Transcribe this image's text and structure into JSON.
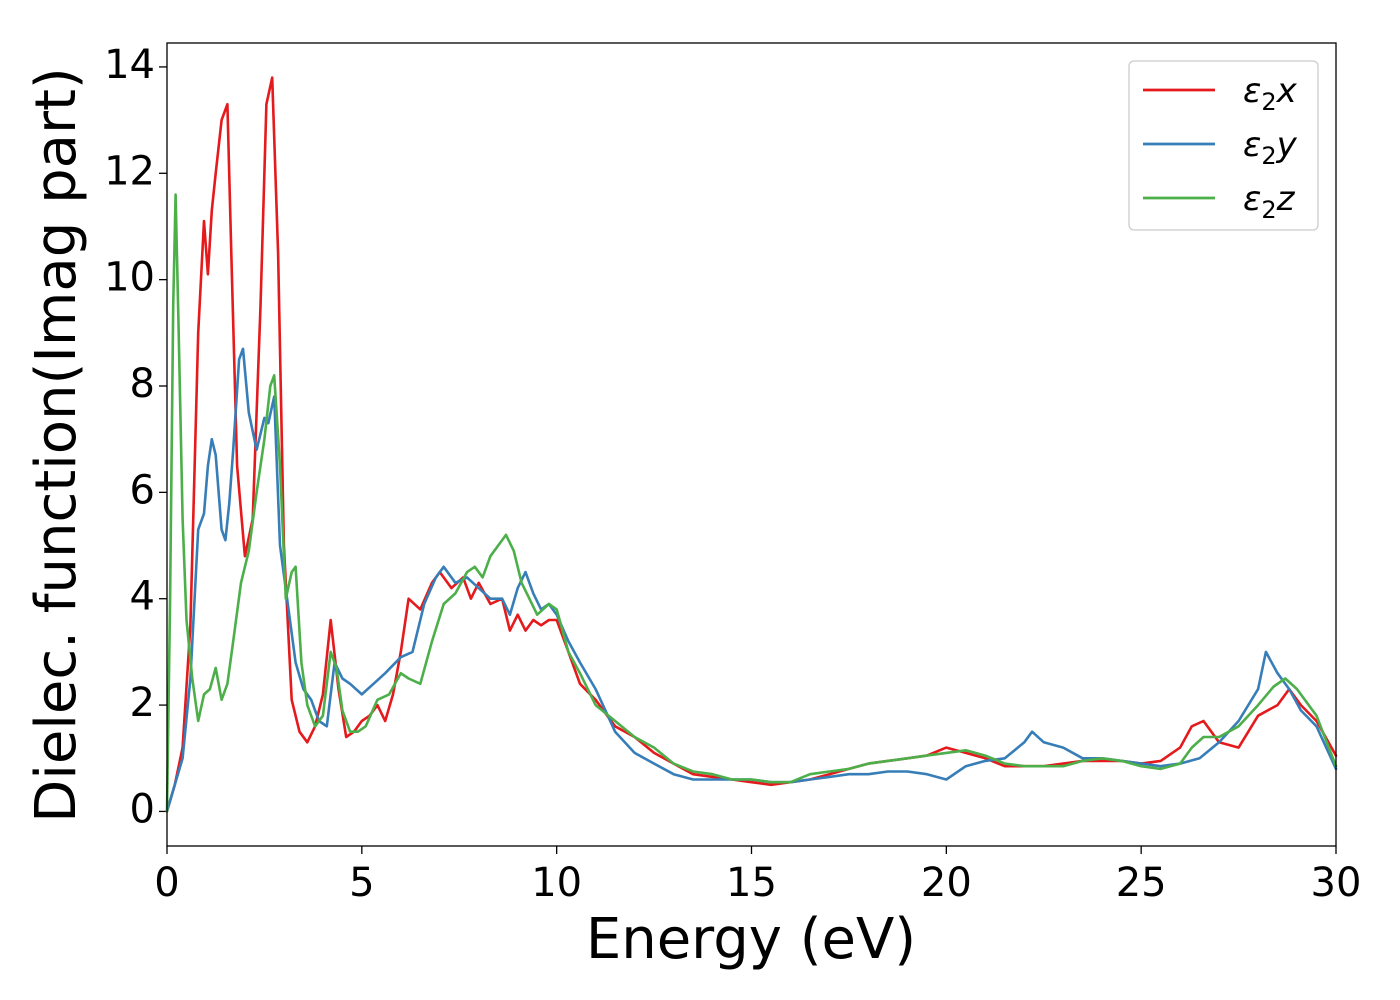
{
  "chart_data": {
    "type": "line",
    "title": "",
    "xlabel": "Energy (eV)",
    "ylabel": "Dielec. function(Imag part)",
    "xlim": [
      0,
      30
    ],
    "ylim": [
      -0.65,
      14.45
    ],
    "xticks": [
      0,
      5,
      10,
      15,
      20,
      25,
      30
    ],
    "yticks": [
      0,
      2,
      4,
      6,
      8,
      10,
      12,
      14
    ],
    "grid": false,
    "legend_position": "top-right",
    "series": [
      {
        "name": "ε2x",
        "legend_base": "ε",
        "legend_sub": "2",
        "legend_suffix": "x",
        "color": "#e41a1c",
        "x": [
          0,
          0.2,
          0.4,
          0.6,
          0.8,
          0.95,
          1.05,
          1.15,
          1.25,
          1.4,
          1.55,
          1.65,
          1.8,
          2.0,
          2.2,
          2.4,
          2.55,
          2.7,
          2.85,
          3.0,
          3.2,
          3.4,
          3.6,
          3.8,
          4.0,
          4.2,
          4.4,
          4.6,
          4.8,
          5.0,
          5.2,
          5.4,
          5.6,
          5.8,
          6.0,
          6.2,
          6.5,
          6.8,
          7.0,
          7.3,
          7.6,
          7.8,
          8.0,
          8.3,
          8.6,
          8.8,
          9.0,
          9.2,
          9.4,
          9.6,
          9.8,
          10.0,
          10.3,
          10.6,
          11.0,
          11.5,
          12.0,
          12.5,
          13.0,
          13.5,
          14.0,
          14.5,
          15.0,
          15.5,
          16.0,
          16.5,
          17.0,
          17.5,
          18.0,
          18.5,
          19.0,
          19.5,
          20.0,
          20.5,
          21.0,
          21.5,
          22.0,
          22.5,
          23.0,
          23.5,
          24.0,
          24.5,
          25.0,
          25.5,
          26.0,
          26.3,
          26.6,
          27.0,
          27.5,
          28.0,
          28.5,
          28.8,
          29.1,
          29.5,
          30.0
        ],
        "y": [
          0,
          0.5,
          1.2,
          3.5,
          9.0,
          11.1,
          10.1,
          11.3,
          12.0,
          13.0,
          13.3,
          10.5,
          6.5,
          4.8,
          5.5,
          9.5,
          13.3,
          13.8,
          10.5,
          5.0,
          2.1,
          1.5,
          1.3,
          1.6,
          2.2,
          3.6,
          2.3,
          1.4,
          1.5,
          1.7,
          1.8,
          2.0,
          1.7,
          2.2,
          3.0,
          4.0,
          3.8,
          4.3,
          4.5,
          4.2,
          4.4,
          4.0,
          4.3,
          3.9,
          4.0,
          3.4,
          3.7,
          3.4,
          3.6,
          3.5,
          3.6,
          3.6,
          3.0,
          2.4,
          2.1,
          1.6,
          1.4,
          1.1,
          0.9,
          0.7,
          0.65,
          0.6,
          0.55,
          0.5,
          0.55,
          0.6,
          0.7,
          0.8,
          0.9,
          0.95,
          1.0,
          1.05,
          1.2,
          1.1,
          1.0,
          0.85,
          0.85,
          0.85,
          0.9,
          0.95,
          0.95,
          0.95,
          0.9,
          0.95,
          1.2,
          1.6,
          1.7,
          1.3,
          1.2,
          1.8,
          2.0,
          2.3,
          2.0,
          1.7,
          1.05
        ]
      },
      {
        "name": "ε2y",
        "legend_base": "ε",
        "legend_sub": "2",
        "legend_suffix": "y",
        "color": "#377eb8",
        "x": [
          0,
          0.2,
          0.4,
          0.6,
          0.8,
          0.95,
          1.05,
          1.15,
          1.25,
          1.4,
          1.5,
          1.6,
          1.7,
          1.85,
          1.95,
          2.1,
          2.3,
          2.5,
          2.6,
          2.75,
          2.9,
          3.1,
          3.3,
          3.5,
          3.7,
          3.9,
          4.1,
          4.3,
          4.5,
          4.7,
          5.0,
          5.3,
          5.6,
          6.0,
          6.3,
          6.6,
          6.9,
          7.1,
          7.4,
          7.7,
          8.0,
          8.3,
          8.6,
          8.8,
          9.0,
          9.2,
          9.4,
          9.6,
          9.8,
          10.0,
          10.3,
          10.6,
          11.0,
          11.5,
          12.0,
          12.5,
          13.0,
          13.5,
          14.0,
          14.5,
          15.0,
          15.5,
          16.0,
          16.5,
          17.0,
          17.5,
          18.0,
          18.5,
          19.0,
          19.5,
          20.0,
          20.5,
          21.0,
          21.5,
          22.0,
          22.2,
          22.5,
          23.0,
          23.5,
          24.0,
          24.5,
          25.0,
          25.5,
          26.0,
          26.5,
          27.0,
          27.5,
          28.0,
          28.2,
          28.5,
          28.8,
          29.1,
          29.5,
          30.0
        ],
        "y": [
          0,
          0.5,
          1.0,
          2.5,
          5.3,
          5.6,
          6.5,
          7.0,
          6.7,
          5.3,
          5.1,
          5.8,
          6.8,
          8.5,
          8.7,
          7.5,
          6.8,
          7.4,
          7.3,
          7.8,
          5.0,
          3.9,
          2.8,
          2.3,
          2.1,
          1.7,
          1.6,
          2.8,
          2.5,
          2.4,
          2.2,
          2.4,
          2.6,
          2.9,
          3.0,
          3.9,
          4.4,
          4.6,
          4.3,
          4.4,
          4.2,
          4.0,
          4.0,
          3.7,
          4.2,
          4.5,
          4.1,
          3.8,
          3.9,
          3.7,
          3.2,
          2.8,
          2.3,
          1.5,
          1.1,
          0.9,
          0.7,
          0.6,
          0.6,
          0.6,
          0.6,
          0.55,
          0.55,
          0.6,
          0.65,
          0.7,
          0.7,
          0.75,
          0.75,
          0.7,
          0.6,
          0.85,
          0.95,
          1.0,
          1.3,
          1.5,
          1.3,
          1.2,
          1.0,
          1.0,
          0.95,
          0.9,
          0.85,
          0.9,
          1.0,
          1.3,
          1.7,
          2.3,
          3.0,
          2.6,
          2.3,
          1.9,
          1.6,
          0.8
        ]
      },
      {
        "name": "ε2z",
        "legend_base": "ε",
        "legend_sub": "2",
        "legend_suffix": "z",
        "color": "#4daf4a",
        "x": [
          0,
          0.08,
          0.16,
          0.22,
          0.3,
          0.4,
          0.5,
          0.65,
          0.8,
          0.95,
          1.1,
          1.25,
          1.4,
          1.55,
          1.7,
          1.9,
          2.1,
          2.3,
          2.5,
          2.65,
          2.75,
          2.9,
          3.05,
          3.2,
          3.3,
          3.45,
          3.6,
          3.8,
          4.0,
          4.2,
          4.35,
          4.5,
          4.7,
          4.9,
          5.1,
          5.4,
          5.7,
          6.0,
          6.2,
          6.5,
          6.8,
          7.1,
          7.4,
          7.7,
          7.9,
          8.1,
          8.3,
          8.5,
          8.7,
          8.9,
          9.1,
          9.3,
          9.5,
          9.8,
          10.0,
          10.3,
          10.6,
          11.0,
          11.5,
          12.0,
          12.5,
          13.0,
          13.5,
          14.0,
          14.5,
          15.0,
          15.5,
          16.0,
          16.5,
          17.0,
          17.5,
          18.0,
          18.5,
          19.0,
          19.5,
          20.0,
          20.5,
          21.0,
          21.5,
          22.0,
          22.5,
          23.0,
          23.5,
          24.0,
          24.5,
          25.0,
          25.5,
          26.0,
          26.3,
          26.6,
          27.0,
          27.5,
          28.0,
          28.4,
          28.7,
          29.0,
          29.5,
          30.0
        ],
        "y": [
          0,
          4.0,
          9.5,
          11.6,
          9.0,
          5.5,
          3.6,
          2.5,
          1.7,
          2.2,
          2.3,
          2.7,
          2.1,
          2.4,
          3.2,
          4.3,
          4.9,
          6.0,
          7.0,
          8.0,
          8.2,
          6.5,
          4.0,
          4.5,
          4.6,
          2.8,
          2.0,
          1.6,
          1.8,
          3.0,
          2.7,
          1.9,
          1.5,
          1.5,
          1.6,
          2.1,
          2.2,
          2.6,
          2.5,
          2.4,
          3.2,
          3.9,
          4.1,
          4.5,
          4.6,
          4.4,
          4.8,
          5.0,
          5.2,
          4.9,
          4.3,
          4.0,
          3.7,
          3.9,
          3.8,
          3.0,
          2.6,
          2.0,
          1.7,
          1.4,
          1.2,
          0.9,
          0.75,
          0.7,
          0.6,
          0.6,
          0.55,
          0.55,
          0.7,
          0.75,
          0.8,
          0.9,
          0.95,
          1.0,
          1.05,
          1.1,
          1.15,
          1.05,
          0.9,
          0.85,
          0.85,
          0.85,
          0.95,
          1.0,
          0.95,
          0.85,
          0.8,
          0.9,
          1.2,
          1.4,
          1.4,
          1.6,
          2.0,
          2.35,
          2.5,
          2.3,
          1.8,
          0.85
        ]
      }
    ]
  }
}
